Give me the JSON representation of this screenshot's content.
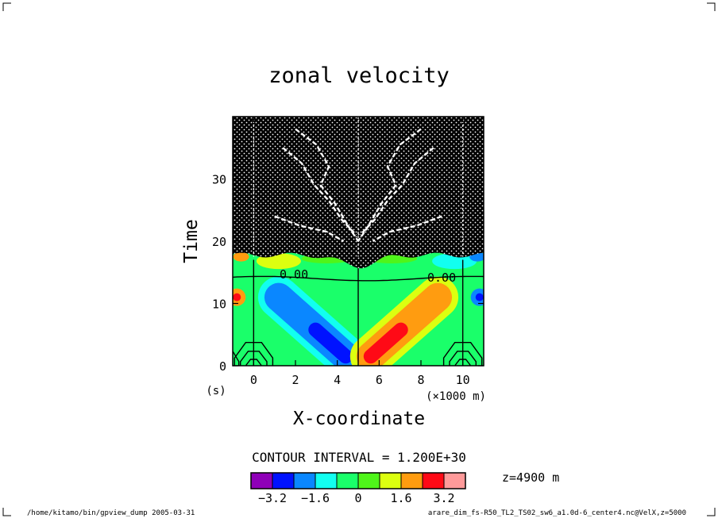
{
  "chart_data": {
    "type": "heatmap",
    "title": "zonal velocity",
    "xlabel": "X-coordinate",
    "ylabel": "Time",
    "xunit": "(×1000 m)",
    "yunit": "(s)",
    "xlim": [
      -1.0,
      11.0
    ],
    "ylim": [
      0,
      40
    ],
    "xticks": [
      0,
      2,
      4,
      6,
      8,
      10
    ],
    "yticks": [
      0,
      10,
      20,
      30
    ],
    "contour_interval_label": "CONTOUR INTERVAL = 1.200E+30",
    "contour_labels": [
      "0.00",
      "0.00"
    ],
    "level_label": "z=4900 m",
    "colorbar": {
      "colors": [
        "#8f00b8",
        "#0012ff",
        "#0a87ff",
        "#12fff0",
        "#1aff6a",
        "#4ff51a",
        "#dcff10",
        "#ff9c10",
        "#ff0a16",
        "#ff9a9a"
      ],
      "tick_labels": [
        "−3.2",
        "−1.6",
        "0",
        "1.6",
        "3.2"
      ]
    },
    "features": [
      {
        "x_start": 1.2,
        "y_start": 11.0,
        "x_end": 4.4,
        "y_end": 1.5,
        "value": -3.0
      },
      {
        "x_start": 5.6,
        "y_start": 1.5,
        "x_end": 8.8,
        "y_end": 11.0,
        "value": 3.0
      }
    ],
    "noise_region_time_above": 17
  },
  "footer": {
    "left": "/home/kitamo/bin/gpview_dump  2005-03-31",
    "right": "arare_dim_fs-R50_TL2_TS02_sw6_a1.0d-6_center4.nc@VelX,z=5000"
  }
}
